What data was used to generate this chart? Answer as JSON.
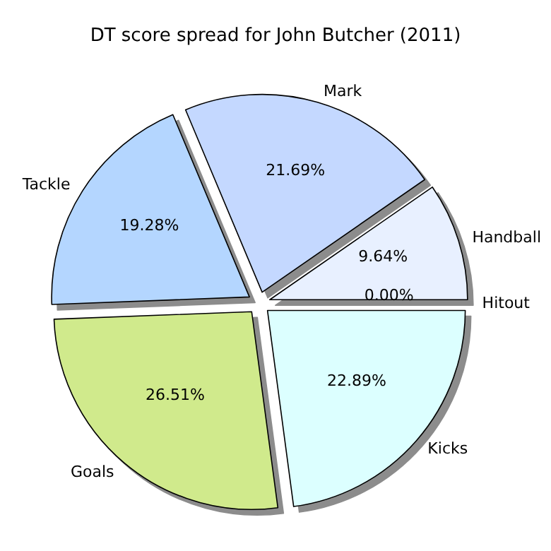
{
  "chart_data": {
    "type": "pie",
    "title": "DT score spread for John Butcher (2011)",
    "categories": [
      "Hitout",
      "Handball",
      "Mark",
      "Tackle",
      "Goals",
      "Kicks"
    ],
    "values": [
      0,
      9.64,
      21.69,
      19.28,
      26.51,
      22.89
    ],
    "value_labels": [
      "0.00%",
      "9.64%",
      "21.69%",
      "19.28%",
      "26.51%",
      "22.89%"
    ],
    "colors": [
      "#ffffff",
      "#e8f0ff",
      "#c4d8ff",
      "#b4d6ff",
      "#d0ea8c",
      "#dcffff"
    ]
  }
}
